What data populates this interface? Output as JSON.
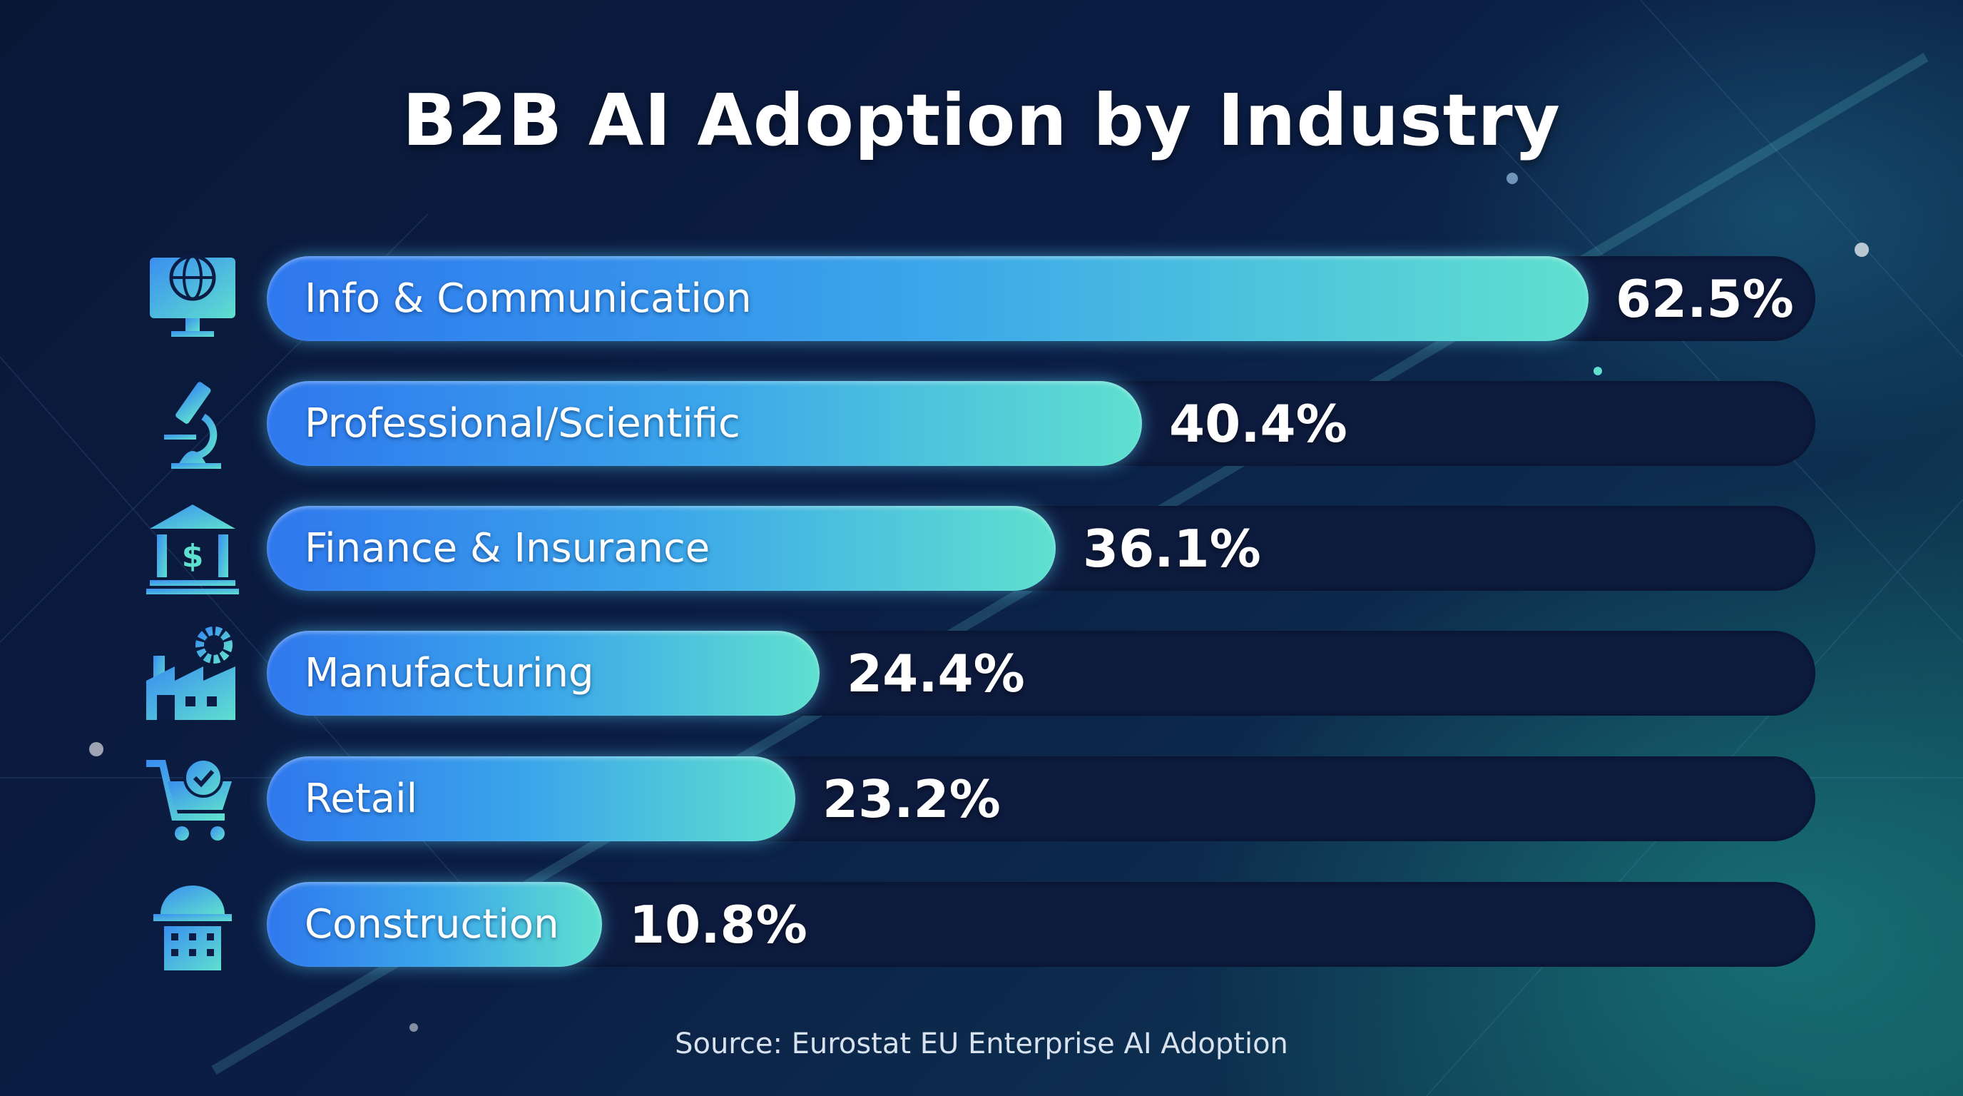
{
  "chart_data": {
    "type": "bar",
    "orientation": "horizontal",
    "title": "B2B AI Adoption by Industry",
    "categories": [
      "Info & Communication",
      "Professional/Scientific",
      "Finance & Insurance",
      "Manufacturing",
      "Retail",
      "Construction"
    ],
    "values": [
      62.5,
      40.4,
      36.1,
      24.4,
      23.2,
      10.8
    ],
    "value_labels": [
      "62.5%",
      "40.4%",
      "36.1%",
      "24.4%",
      "23.2%",
      "10.8%"
    ],
    "icons": [
      "monitor-globe-icon",
      "microscope-icon",
      "bank-icon",
      "factory-gear-icon",
      "cart-check-icon",
      "hardhat-building-icon"
    ],
    "unit": "%",
    "xlim": [
      0,
      100
    ],
    "grid": false,
    "legend": "none",
    "source": "Source: Eurostat EU Enterprise AI Adoption",
    "colors": {
      "bar_start": "#2f78ee",
      "bar_end": "#5fe0cf",
      "track": "#0d1b3f",
      "background": "#0b1d44"
    }
  }
}
